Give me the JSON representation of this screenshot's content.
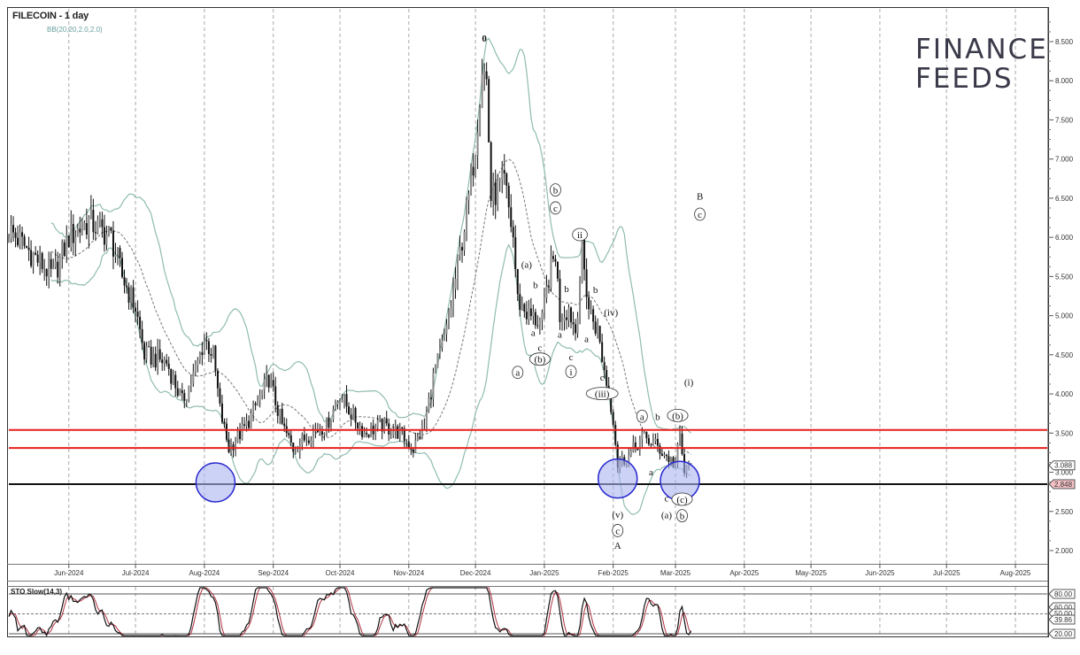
{
  "header": {
    "title": "FILECOIN - 1 day",
    "indicator": "BB(20,20,2.0,2.0)"
  },
  "logo": {
    "line1": "FINANCE",
    "line2": "FEEDS"
  },
  "stochastic": {
    "label": "STO Slow(14,3)",
    "levels": [
      80,
      50,
      20
    ],
    "tags": [
      "80.00",
      "60.00",
      "50.00",
      "39.86",
      "20.00"
    ]
  },
  "colors": {
    "bands": "#8fbcae",
    "resistance": "#e8201c",
    "support": "#111111",
    "circle_fill": "#aab4ee",
    "circle_stroke": "#2b2bd0",
    "stoch_k": "#111111",
    "stoch_d": "#b03040"
  },
  "chart_data": {
    "type": "candlestick",
    "symbol": "FILECOIN",
    "timeframe": "1 day",
    "ylim": [
      1.8,
      8.9
    ],
    "y_ticks": [
      "2.000",
      "2.500",
      "3.000",
      "3.500",
      "4.000",
      "4.500",
      "5.000",
      "5.500",
      "6.000",
      "6.500",
      "7.000",
      "7.500",
      "8.000",
      "8.500"
    ],
    "x_ticks": [
      {
        "label": "Jun-2024",
        "date": "2024-06-01"
      },
      {
        "label": "Jul-2024",
        "date": "2024-07-01"
      },
      {
        "label": "Aug-2024",
        "date": "2024-08-01"
      },
      {
        "label": "Sep-2024",
        "date": "2024-09-01"
      },
      {
        "label": "Oct-2024",
        "date": "2024-10-01"
      },
      {
        "label": "Nov-2024",
        "date": "2024-11-01"
      },
      {
        "label": "Dec-2024",
        "date": "2024-12-01"
      },
      {
        "label": "Jan-2025",
        "date": "2025-01-01"
      },
      {
        "label": "Feb-2025",
        "date": "2025-02-01"
      },
      {
        "label": "Mar-2025",
        "date": "2025-03-01"
      },
      {
        "label": "Apr-2025",
        "date": "2025-04-01"
      },
      {
        "label": "May-2025",
        "date": "2025-05-01"
      },
      {
        "label": "Jun-2025",
        "date": "2025-06-01"
      },
      {
        "label": "Jul-2025",
        "date": "2025-07-01"
      },
      {
        "label": "Aug-2025",
        "date": "2025-08-01"
      }
    ],
    "close_points": [
      {
        "date": "2024-05-05",
        "close": 6.1
      },
      {
        "date": "2024-05-15",
        "close": 5.8
      },
      {
        "date": "2024-05-25",
        "close": 5.5
      },
      {
        "date": "2024-06-01",
        "close": 6.0
      },
      {
        "date": "2024-06-10",
        "close": 6.2
      },
      {
        "date": "2024-06-20",
        "close": 6.0
      },
      {
        "date": "2024-06-25",
        "close": 5.5
      },
      {
        "date": "2024-07-01",
        "close": 5.1
      },
      {
        "date": "2024-07-05",
        "close": 4.5
      },
      {
        "date": "2024-07-15",
        "close": 4.4
      },
      {
        "date": "2024-07-22",
        "close": 3.9
      },
      {
        "date": "2024-07-28",
        "close": 4.3
      },
      {
        "date": "2024-08-01",
        "close": 4.7
      },
      {
        "date": "2024-08-05",
        "close": 4.5
      },
      {
        "date": "2024-08-08",
        "close": 3.8
      },
      {
        "date": "2024-08-12",
        "close": 3.3
      },
      {
        "date": "2024-08-20",
        "close": 3.6
      },
      {
        "date": "2024-08-30",
        "close": 4.2
      },
      {
        "date": "2024-09-05",
        "close": 3.6
      },
      {
        "date": "2024-09-10",
        "close": 3.3
      },
      {
        "date": "2024-09-18",
        "close": 3.5
      },
      {
        "date": "2024-09-25",
        "close": 3.6
      },
      {
        "date": "2024-10-01",
        "close": 4.0
      },
      {
        "date": "2024-10-05",
        "close": 3.8
      },
      {
        "date": "2024-10-12",
        "close": 3.5
      },
      {
        "date": "2024-10-20",
        "close": 3.6
      },
      {
        "date": "2024-10-28",
        "close": 3.5
      },
      {
        "date": "2024-11-03",
        "close": 3.3
      },
      {
        "date": "2024-11-08",
        "close": 3.6
      },
      {
        "date": "2024-11-12",
        "close": 4.2
      },
      {
        "date": "2024-11-18",
        "close": 4.8
      },
      {
        "date": "2024-11-24",
        "close": 5.8
      },
      {
        "date": "2024-11-28",
        "close": 6.5
      },
      {
        "date": "2024-12-01",
        "close": 7.2
      },
      {
        "date": "2024-12-04",
        "close": 8.2
      },
      {
        "date": "2024-12-06",
        "close": 8.0
      },
      {
        "date": "2024-12-08",
        "close": 6.5
      },
      {
        "date": "2024-12-14",
        "close": 6.7
      },
      {
        "date": "2024-12-18",
        "close": 6.0
      },
      {
        "date": "2024-12-20",
        "close": 5.2
      },
      {
        "date": "2024-12-25",
        "close": 5.0
      },
      {
        "date": "2024-12-31",
        "close": 4.9
      },
      {
        "date": "2025-01-03",
        "close": 5.5
      },
      {
        "date": "2025-01-06",
        "close": 5.8
      },
      {
        "date": "2025-01-08",
        "close": 5.0
      },
      {
        "date": "2025-01-12",
        "close": 5.1
      },
      {
        "date": "2025-01-15",
        "close": 4.8
      },
      {
        "date": "2025-01-18",
        "close": 5.8
      },
      {
        "date": "2025-01-21",
        "close": 5.1
      },
      {
        "date": "2025-01-25",
        "close": 4.8
      },
      {
        "date": "2025-01-28",
        "close": 4.3
      },
      {
        "date": "2025-02-01",
        "close": 3.7
      },
      {
        "date": "2025-02-03",
        "close": 3.1
      },
      {
        "date": "2025-02-08",
        "close": 3.2
      },
      {
        "date": "2025-02-14",
        "close": 3.45
      },
      {
        "date": "2025-02-20",
        "close": 3.35
      },
      {
        "date": "2025-02-25",
        "close": 3.2
      },
      {
        "date": "2025-03-01",
        "close": 3.1
      },
      {
        "date": "2025-03-03",
        "close": 3.45
      },
      {
        "date": "2025-03-05",
        "close": 3.0
      },
      {
        "date": "2025-03-08",
        "close": 3.088
      }
    ],
    "price_tags": [
      {
        "label": "3.088",
        "price": 3.088,
        "kind": "last"
      },
      {
        "label": "2.848",
        "price": 2.848,
        "kind": "support"
      }
    ],
    "horizontal_lines": [
      {
        "price": 3.54,
        "color": "resistance"
      },
      {
        "price": 3.31,
        "color": "resistance"
      },
      {
        "price": 2.848,
        "color": "support"
      }
    ],
    "highlight_circles": [
      {
        "date": "2024-08-06",
        "price": 2.87
      },
      {
        "date": "2025-02-03",
        "price": 2.92
      },
      {
        "date": "2025-03-03",
        "price": 2.89
      }
    ],
    "wave_labels": [
      {
        "text": "0",
        "date": "2024-12-05",
        "price": 8.5,
        "style": "plain-bold"
      },
      {
        "text": "B",
        "date": "2025-03-12",
        "price": 6.48,
        "style": "plain-large"
      },
      {
        "text": "c",
        "date": "2025-03-12",
        "price": 6.25,
        "style": "circled"
      },
      {
        "text": "b",
        "date": "2025-01-06",
        "price": 6.56,
        "style": "circled"
      },
      {
        "text": "c",
        "date": "2025-01-06",
        "price": 6.33,
        "style": "circled"
      },
      {
        "text": "ii",
        "date": "2025-01-17",
        "price": 5.99,
        "style": "circled"
      },
      {
        "text": "(a)",
        "date": "2024-12-24",
        "price": 5.61,
        "style": "plain"
      },
      {
        "text": "b",
        "date": "2024-12-28",
        "price": 5.35,
        "style": "plain"
      },
      {
        "text": "a",
        "date": "2024-12-27",
        "price": 4.74,
        "style": "plain"
      },
      {
        "text": "c",
        "date": "2024-12-30",
        "price": 4.55,
        "style": "plain"
      },
      {
        "text": "(b)",
        "date": "2024-12-30",
        "price": 4.4,
        "style": "circled"
      },
      {
        "text": "a",
        "date": "2024-12-20",
        "price": 4.23,
        "style": "circled"
      },
      {
        "text": "b",
        "date": "2025-01-11",
        "price": 5.3,
        "style": "plain"
      },
      {
        "text": "a",
        "date": "2025-01-08",
        "price": 4.72,
        "style": "plain"
      },
      {
        "text": "c",
        "date": "2025-01-13",
        "price": 4.43,
        "style": "plain"
      },
      {
        "text": "i",
        "date": "2025-01-13",
        "price": 4.24,
        "style": "circled"
      },
      {
        "text": "b",
        "date": "2025-01-24",
        "price": 5.29,
        "style": "plain"
      },
      {
        "text": "a",
        "date": "2025-01-20",
        "price": 4.66,
        "style": "plain"
      },
      {
        "text": "(iv)",
        "date": "2025-01-31",
        "price": 5.0,
        "style": "plain"
      },
      {
        "text": "c",
        "date": "2025-01-27",
        "price": 4.17,
        "style": "plain"
      },
      {
        "text": "(iii)",
        "date": "2025-01-27",
        "price": 3.96,
        "style": "circled"
      },
      {
        "text": "a",
        "date": "2025-02-14",
        "price": 3.67,
        "style": "circled"
      },
      {
        "text": "b",
        "date": "2025-02-21",
        "price": 3.67,
        "style": "plain"
      },
      {
        "text": "(b)",
        "date": "2025-03-02",
        "price": 3.68,
        "style": "circled"
      },
      {
        "text": "(i)",
        "date": "2025-03-07",
        "price": 4.11,
        "style": "plain"
      },
      {
        "text": "a",
        "date": "2025-02-18",
        "price": 2.96,
        "style": "plain"
      },
      {
        "text": "c",
        "date": "2025-02-25",
        "price": 2.63,
        "style": "plain"
      },
      {
        "text": "(c)",
        "date": "2025-03-04",
        "price": 2.61,
        "style": "circled"
      },
      {
        "text": "(a)",
        "date": "2025-02-25",
        "price": 2.41,
        "style": "plain"
      },
      {
        "text": "b",
        "date": "2025-03-04",
        "price": 2.4,
        "style": "circled"
      },
      {
        "text": "(v)",
        "date": "2025-02-03",
        "price": 2.42,
        "style": "plain"
      },
      {
        "text": "c",
        "date": "2025-02-03",
        "price": 2.21,
        "style": "circled"
      },
      {
        "text": "A",
        "date": "2025-02-03",
        "price": 2.02,
        "style": "plain-large"
      }
    ]
  }
}
